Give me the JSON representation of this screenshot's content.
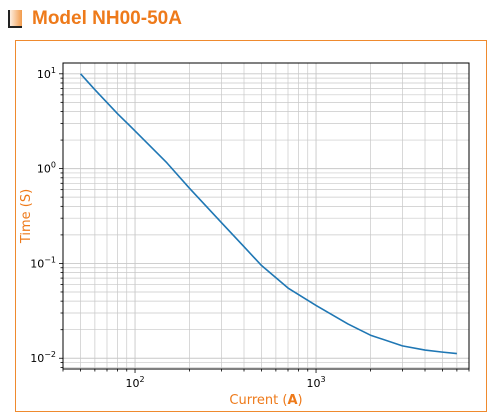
{
  "header": {
    "title": "Model NH00-50A"
  },
  "colors": {
    "accent": "#ee7a1a",
    "panel_border": "#ef8a2e",
    "curve": "#1f77b4",
    "grid": "#c8c8c8"
  },
  "chart_data": {
    "type": "line",
    "title": "",
    "xlabel_prefix": "Current (",
    "xlabel_unit": "A",
    "xlabel_suffix": ")",
    "ylabel": "Time (S)",
    "x_scale": "log",
    "y_scale": "log",
    "xlim": [
      40,
      7000
    ],
    "ylim": [
      0.0077,
      13
    ],
    "x_major_ticks": [
      {
        "value": 100,
        "base": "10",
        "exp": "2"
      },
      {
        "value": 1000,
        "base": "10",
        "exp": "3"
      }
    ],
    "y_major_ticks": [
      {
        "value": 10,
        "base": "10",
        "exp": "1"
      },
      {
        "value": 1,
        "base": "10",
        "exp": "0"
      },
      {
        "value": 0.1,
        "base": "10",
        "exp": "−1"
      },
      {
        "value": 0.01,
        "base": "10",
        "exp": "−2"
      }
    ],
    "grid": true,
    "series": [
      {
        "x": [
          50,
          60,
          80,
          100,
          150,
          200,
          300,
          400,
          500,
          700,
          1000,
          1500,
          2000,
          3000,
          4000,
          5000,
          6000
        ],
        "y": [
          10,
          6.8,
          3.8,
          2.5,
          1.15,
          0.62,
          0.27,
          0.15,
          0.095,
          0.055,
          0.036,
          0.023,
          0.0175,
          0.0135,
          0.0122,
          0.0116,
          0.0112
        ]
      }
    ]
  }
}
